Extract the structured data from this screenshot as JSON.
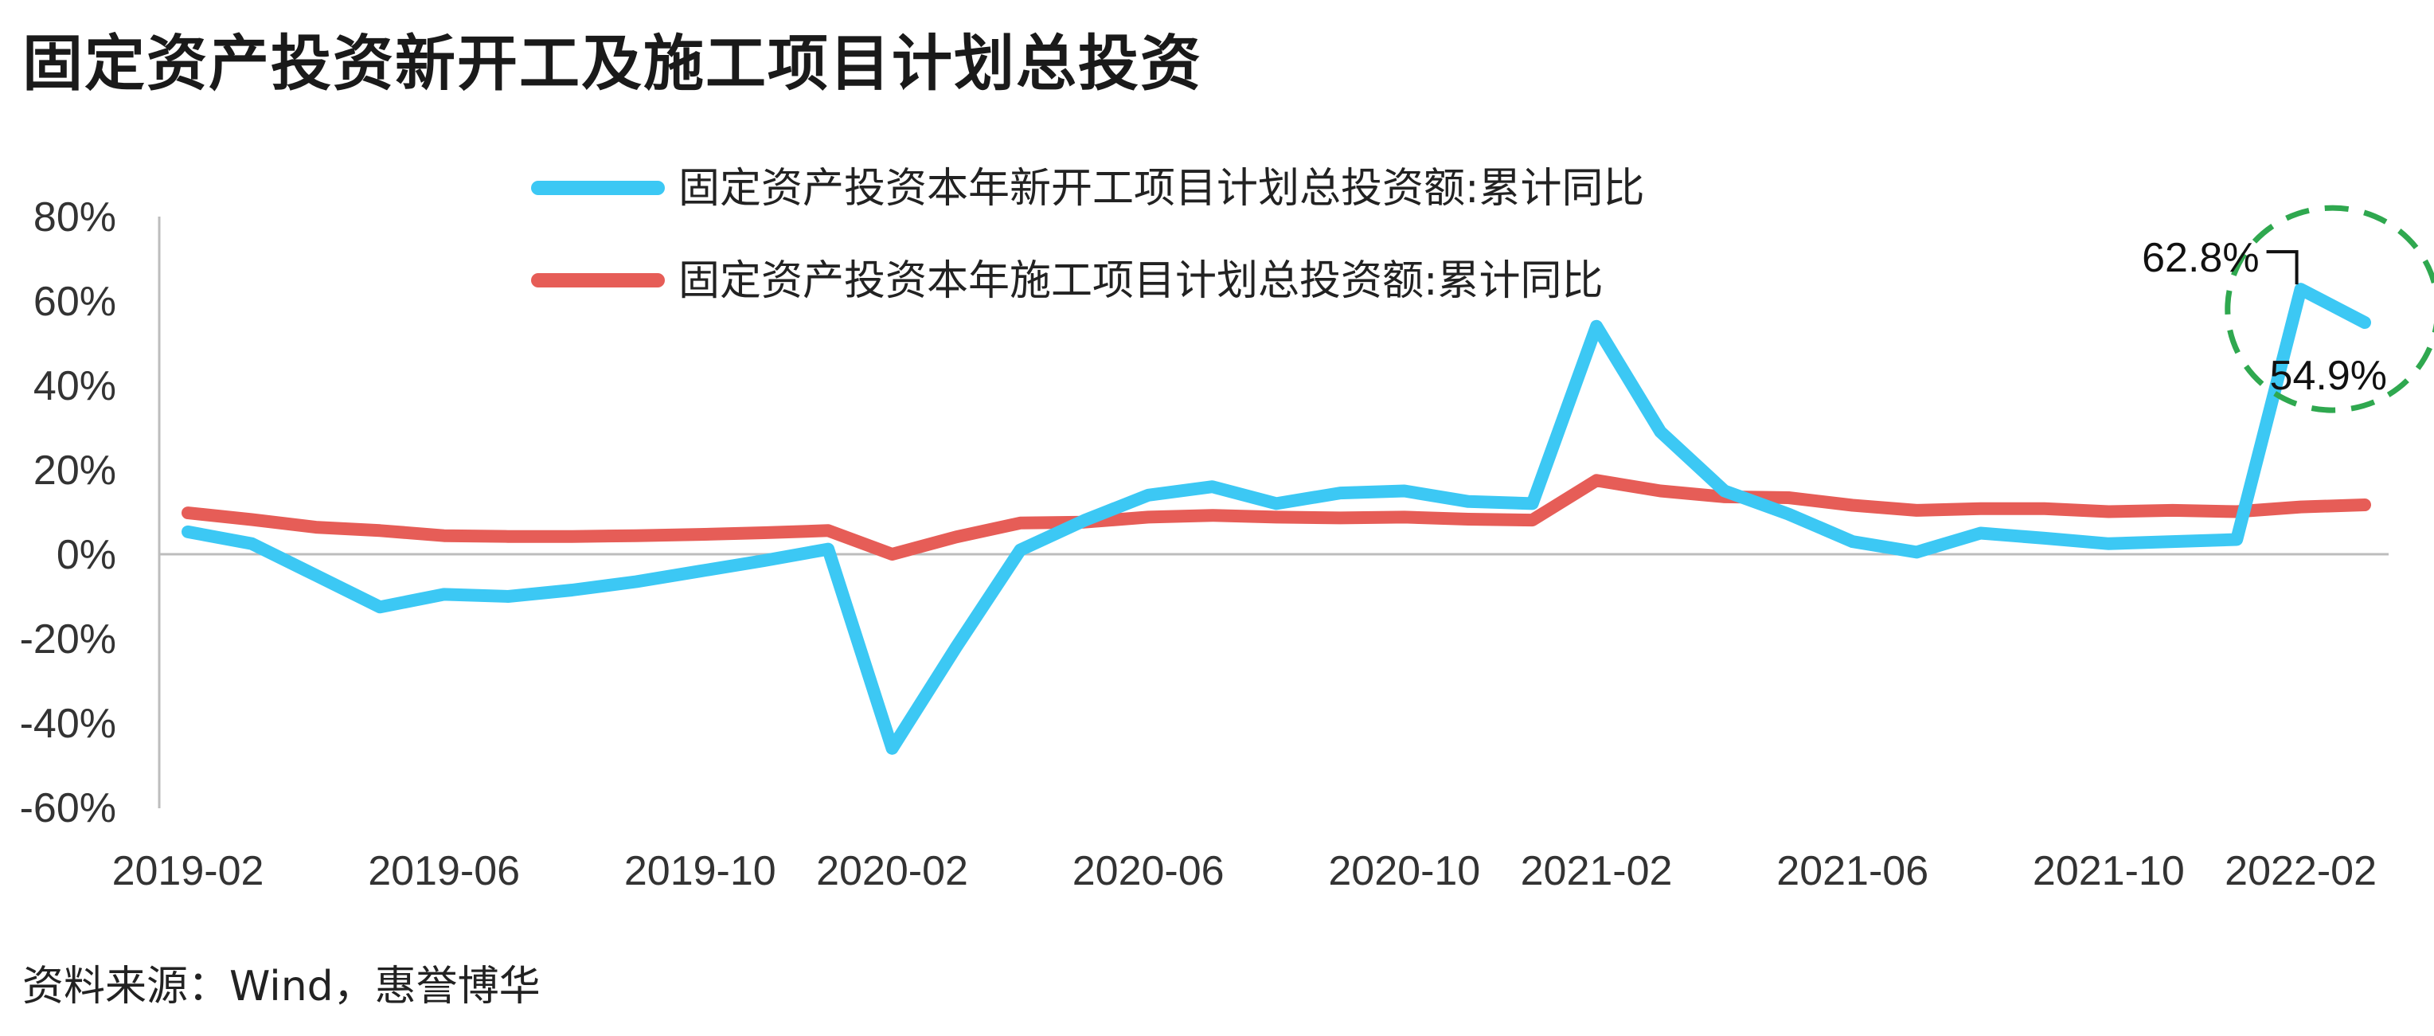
{
  "title": "固定资产投资新开工及施工项目计划总投资",
  "source": "资料来源：Wind，惠誉博华",
  "colors": {
    "new": "#3cc8f4",
    "ongoing": "#e65d57",
    "circle": "#2fa84f",
    "axis": "#bdbdbd"
  },
  "chart_data": {
    "type": "line",
    "yticks": [
      "80%",
      "60%",
      "40%",
      "20%",
      "0%",
      "-20%",
      "-40%",
      "-60%"
    ],
    "ylim": [
      -60,
      80
    ],
    "xticks": [
      "2019-02",
      "2019-06",
      "2019-10",
      "2020-02",
      "2020-06",
      "2020-10",
      "2021-02",
      "2021-06",
      "2021-10",
      "2022-02"
    ],
    "x": [
      "2019-02",
      "2019-03",
      "2019-04",
      "2019-05",
      "2019-06",
      "2019-07",
      "2019-08",
      "2019-09",
      "2019-10",
      "2019-11",
      "2019-12",
      "2020-02",
      "2020-03",
      "2020-04",
      "2020-05",
      "2020-06",
      "2020-07",
      "2020-08",
      "2020-09",
      "2020-10",
      "2020-11",
      "2020-12",
      "2021-02",
      "2021-03",
      "2021-04",
      "2021-05",
      "2021-06",
      "2021-07",
      "2021-08",
      "2021-09",
      "2021-10",
      "2021-11",
      "2021-12",
      "2022-02",
      "2022-03"
    ],
    "series": [
      {
        "name": "固定资产投资本年新开工项目计划总投资额:累计同比",
        "values": [
          5.3,
          2.5,
          -5.0,
          -12.5,
          -9.5,
          -10.0,
          -8.5,
          -6.5,
          -4.0,
          -1.5,
          1.2,
          -46.0,
          -22.0,
          1.0,
          8.0,
          14.0,
          16.0,
          12.0,
          14.5,
          15.0,
          12.5,
          12.0,
          54.0,
          29.0,
          15.0,
          9.5,
          3.0,
          0.5,
          5.0,
          3.8,
          2.5,
          3.0,
          3.5,
          62.8,
          54.9
        ]
      },
      {
        "name": "固定资产投资本年施工项目计划总投资额:累计同比",
        "values": [
          9.8,
          8.2,
          6.4,
          5.6,
          4.4,
          4.2,
          4.2,
          4.4,
          4.7,
          5.1,
          5.6,
          0.0,
          4.1,
          7.4,
          7.6,
          8.8,
          9.2,
          8.8,
          8.6,
          8.8,
          8.3,
          8.1,
          17.5,
          15.0,
          13.6,
          13.4,
          11.6,
          10.4,
          10.8,
          10.8,
          10.1,
          10.4,
          10.1,
          11.2,
          11.7
        ]
      }
    ],
    "annotations": [
      {
        "label": "62.8%",
        "x": "2022-02",
        "y": 62.8
      },
      {
        "label": "54.9%",
        "x": "2022-03",
        "y": 54.9
      }
    ]
  }
}
